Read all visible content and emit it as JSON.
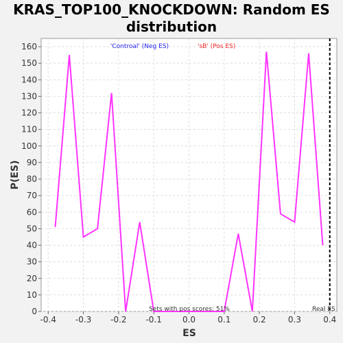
{
  "chart_data": {
    "type": "line",
    "title_line1": "KRAS_TOP100_KNOCKDOWN: Random ES",
    "title_line2": "distribution",
    "xlabel": "ES",
    "ylabel": "P(ES)",
    "xlim": [
      -0.42,
      0.42
    ],
    "ylim": [
      0,
      165
    ],
    "xticks": [
      -0.4,
      -0.3,
      -0.2,
      -0.1,
      0.0,
      0.1,
      0.2,
      0.3,
      0.4
    ],
    "xtick_labels": [
      "-0.4",
      "-0.3",
      "-0.2",
      "-0.1",
      "0.0",
      "0.1",
      "0.2",
      "0.3",
      "0.4"
    ],
    "yticks": [
      0,
      10,
      20,
      30,
      40,
      50,
      60,
      70,
      80,
      90,
      100,
      110,
      120,
      130,
      140,
      150,
      160
    ],
    "grid": true,
    "series": [
      {
        "color": "#ff33ff",
        "x": [
          -0.38,
          -0.34,
          -0.3,
          -0.26,
          -0.22,
          -0.18,
          -0.14,
          -0.1,
          -0.06,
          -0.02,
          0.02,
          0.06,
          0.1,
          0.14,
          0.18,
          0.22,
          0.26,
          0.3,
          0.34,
          0.38
        ],
        "y": [
          51,
          155,
          45,
          50,
          132,
          0,
          54,
          0,
          0,
          0,
          0,
          0,
          0,
          47,
          0,
          157,
          59,
          54,
          156,
          40
        ]
      }
    ],
    "real_es": {
      "x": 0.4,
      "label": "Real ES"
    },
    "legend_neg": "'Controal' (Neg ES)",
    "legend_pos": "'sB' (Pos ES)",
    "annotation": "Sets with pos scores: 51%",
    "colors": {
      "neg": "#2222ee",
      "pos": "#ee2222",
      "line": "#ff33ff"
    }
  }
}
